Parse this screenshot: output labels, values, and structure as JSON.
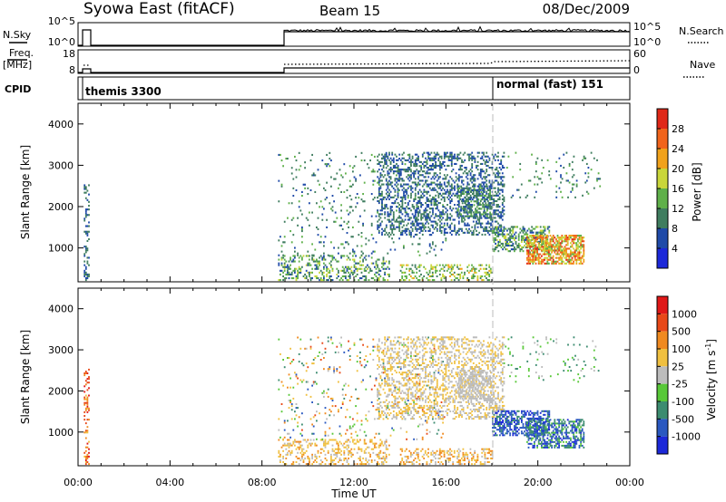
{
  "header": {
    "title": "Syowa East (fitACF)",
    "beam": "Beam 15",
    "date": "08/Dec/2009"
  },
  "panels": {
    "nsky": {
      "left_label": "N.Sky",
      "left_ticks": [
        "10^5",
        "10^0"
      ],
      "right_ticks": [
        "10^5",
        "10^0"
      ],
      "right_label": "N.Search"
    },
    "freq": {
      "left_label_1": "Freq.",
      "left_label_2": "[MHz]",
      "left_ticks": [
        "18",
        "8"
      ],
      "right_ticks": [
        "60",
        "0"
      ],
      "right_label": "Nave"
    },
    "cpid": {
      "label": "CPID",
      "mode_1": "themis 3300",
      "mode_2": "normal (fast) 151"
    }
  },
  "chart_data": [
    {
      "type": "heatmap",
      "name": "power",
      "ylabel": "Slant Range [km]",
      "ylim": [
        180,
        4500
      ],
      "yticks": [
        1000,
        2000,
        3000,
        4000
      ],
      "xlim": [
        0,
        24
      ],
      "colorbar": {
        "label": "Power [dB]",
        "ticks": [
          "28",
          "24",
          "20",
          "16",
          "12",
          "8",
          "4"
        ],
        "colors": [
          "#1c28d8",
          "#1f4aa8",
          "#3f7d5f",
          "#5fb04a",
          "#c9d63a",
          "#f1a21c",
          "#f1641c",
          "#e02818"
        ]
      },
      "regions": [
        {
          "t": [
            0.25,
            0.45
          ],
          "r": [
            200,
            2500
          ],
          "level": [
            1,
            2
          ],
          "density": 0.35
        },
        {
          "t": [
            8.7,
            13.5
          ],
          "r": [
            200,
            800
          ],
          "level": [
            1,
            4
          ],
          "density": 0.3
        },
        {
          "t": [
            8.7,
            16.0
          ],
          "r": [
            800,
            3300
          ],
          "level": [
            1,
            3
          ],
          "density": 0.06
        },
        {
          "t": [
            13.0,
            18.5
          ],
          "r": [
            1300,
            3300
          ],
          "level": [
            1,
            2
          ],
          "density": 0.35
        },
        {
          "t": [
            14.0,
            18.0
          ],
          "r": [
            200,
            600
          ],
          "level": [
            2,
            5
          ],
          "density": 0.35
        },
        {
          "t": [
            16.5,
            18.0
          ],
          "r": [
            1700,
            2500
          ],
          "level": [
            1,
            3
          ],
          "density": 0.45
        },
        {
          "t": [
            18.0,
            20.5
          ],
          "r": [
            900,
            1500
          ],
          "level": [
            1,
            4
          ],
          "density": 0.45
        },
        {
          "t": [
            19.5,
            22.0
          ],
          "r": [
            600,
            1300
          ],
          "level": [
            3,
            7
          ],
          "density": 0.65
        },
        {
          "t": [
            18.5,
            22.7
          ],
          "r": [
            2200,
            3300
          ],
          "level": [
            1,
            3
          ],
          "density": 0.05
        }
      ]
    },
    {
      "type": "heatmap",
      "name": "velocity",
      "ylabel": "Slant Range [km]",
      "ylim": [
        180,
        4500
      ],
      "yticks": [
        1000,
        2000,
        3000,
        4000
      ],
      "xlim": [
        0,
        24
      ],
      "xlabel": "Time UT",
      "xticks": [
        "00:00",
        "04:00",
        "08:00",
        "12:00",
        "16:00",
        "20:00",
        "00:00"
      ],
      "colorbar": {
        "label": "Velocity [m s^-1]",
        "ticks": [
          "1000",
          "500",
          "100",
          "25",
          "-25",
          "-100",
          "-500",
          "-1000"
        ],
        "colors": [
          "#1c28d8",
          "#2a58c0",
          "#3c8c70",
          "#58c838",
          "#bcbcbc",
          "#f0c040",
          "#f08a20",
          "#e84818",
          "#e01818"
        ]
      },
      "regions": [
        {
          "t": [
            0.25,
            0.45
          ],
          "r": [
            200,
            2500
          ],
          "level": [
            5,
            8
          ],
          "density": 0.35
        },
        {
          "t": [
            8.7,
            13.5
          ],
          "r": [
            200,
            800
          ],
          "level": [
            4,
            6
          ],
          "density": 0.3
        },
        {
          "t": [
            8.7,
            16.0
          ],
          "r": [
            800,
            3300
          ],
          "level": [
            1,
            7
          ],
          "density": 0.06
        },
        {
          "t": [
            13.0,
            18.5
          ],
          "r": [
            1300,
            3300
          ],
          "level": [
            4,
            5
          ],
          "density": 0.35
        },
        {
          "t": [
            14.0,
            18.0
          ],
          "r": [
            200,
            600
          ],
          "level": [
            4,
            6
          ],
          "density": 0.35
        },
        {
          "t": [
            16.5,
            18.0
          ],
          "r": [
            1700,
            2500
          ],
          "level": [
            4,
            4
          ],
          "density": 0.45
        },
        {
          "t": [
            18.0,
            20.5
          ],
          "r": [
            900,
            1500
          ],
          "level": [
            0,
            2
          ],
          "density": 0.55
        },
        {
          "t": [
            19.5,
            22.0
          ],
          "r": [
            600,
            1300
          ],
          "level": [
            0,
            3
          ],
          "density": 0.55
        },
        {
          "t": [
            18.5,
            22.7
          ],
          "r": [
            2200,
            3300
          ],
          "level": [
            2,
            4
          ],
          "density": 0.05
        }
      ]
    }
  ]
}
